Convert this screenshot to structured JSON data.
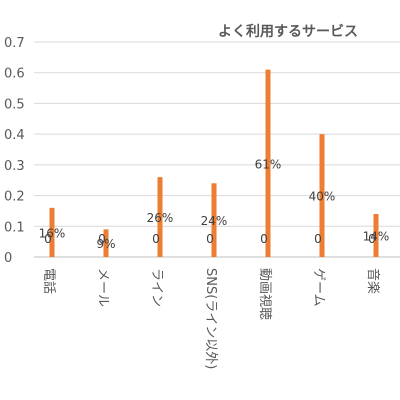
{
  "chart_data": {
    "type": "bar",
    "title": "よく利用するサービス",
    "categories": [
      "電話",
      "メール",
      "ライン",
      "SNS(ライン以外)",
      "動画視聴",
      "ゲーム",
      "音楽"
    ],
    "series": [
      {
        "values": [
          0,
          0,
          0,
          0,
          0,
          0,
          0
        ],
        "labels": [
          "0",
          "0",
          "0",
          "0",
          "0",
          "0",
          "0"
        ]
      },
      {
        "values": [
          0.16,
          0.09,
          0.26,
          0.24,
          0.61,
          0.4,
          0.14
        ],
        "labels": [
          "16%",
          "9%",
          "26%",
          "24%",
          "61%",
          "40%",
          "14%"
        ],
        "color": "#ed7d31"
      }
    ],
    "yticks": [
      "0",
      "0.1",
      "0.2",
      "0.3",
      "0.4",
      "0.5",
      "0.6",
      "0.7"
    ],
    "ylim": [
      0,
      0.7
    ],
    "grid": true,
    "legend": "none"
  }
}
